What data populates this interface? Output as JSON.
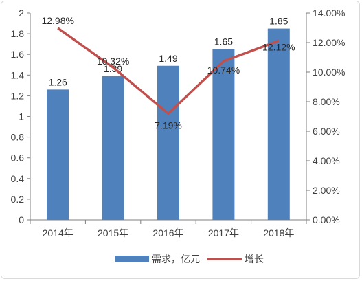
{
  "chart_data": {
    "type": "bar",
    "categories": [
      "2014年",
      "2015年",
      "2016年",
      "2017年",
      "2018年"
    ],
    "series": [
      {
        "name": "需求，亿元",
        "type": "bar",
        "axis": "left",
        "values": [
          1.26,
          1.39,
          1.49,
          1.65,
          1.85
        ],
        "labels": [
          "1.26",
          "1.39",
          "1.49",
          "1.65",
          "1.85"
        ],
        "color": "#4F81BD"
      },
      {
        "name": "增长",
        "type": "line",
        "axis": "right",
        "values": [
          12.98,
          10.32,
          7.19,
          10.74,
          12.12
        ],
        "labels": [
          "12.98%",
          "10.32%",
          "7.19%",
          "10.74%",
          "12.12%"
        ],
        "color": "#C0504D"
      }
    ],
    "y_left": {
      "ylim": [
        0,
        2
      ],
      "ticks": [
        "0",
        "0.2",
        "0.4",
        "0.6",
        "0.8",
        "1",
        "1.2",
        "1.4",
        "1.6",
        "1.8",
        "2"
      ]
    },
    "y_right": {
      "ylim": [
        0,
        14
      ],
      "ticks": [
        "0.00%",
        "2.00%",
        "4.00%",
        "6.00%",
        "8.00%",
        "10.00%",
        "12.00%",
        "14.00%"
      ]
    },
    "grid": false,
    "legend_position": "bottom"
  }
}
